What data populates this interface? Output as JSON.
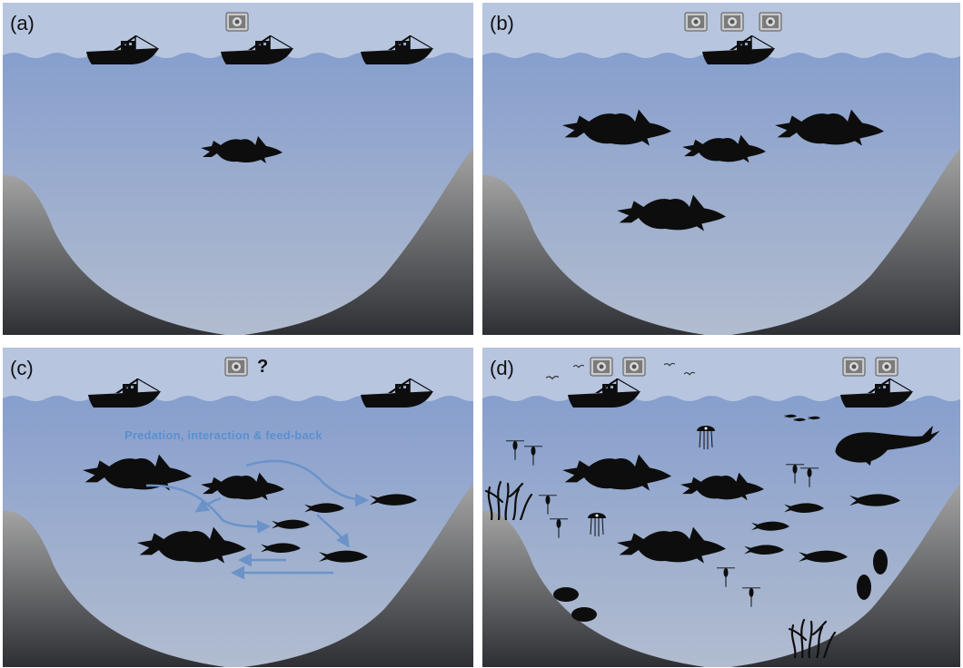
{
  "panels": [
    {
      "label": "(a)",
      "description_icons": {
        "boats": 3,
        "money_notes": 1,
        "fish": 1
      }
    },
    {
      "label": "(b)",
      "description_icons": {
        "boats": 1,
        "money_notes": 3,
        "fish": 4
      }
    },
    {
      "label": "(c)",
      "annotation": "Predation, interaction & feed-back",
      "question_mark": "?",
      "description_icons": {
        "boats": 2,
        "money_notes": 1
      }
    },
    {
      "label": "(d)",
      "description_icons": {
        "boats": 2,
        "money_notes": 4
      }
    }
  ],
  "colors": {
    "sky": "#b7c5df",
    "sea_top": "#8fa8d2",
    "sea_bottom": "#aab7cf",
    "seabed_top": "#9a9a9a",
    "seabed_bottom": "#2f3136",
    "arrow": "#6b93c9"
  },
  "icons": [
    "boat-icon",
    "money-icon",
    "cod-fish-icon",
    "herring-fish-icon",
    "whale-icon",
    "jellyfish-icon",
    "bird-icon",
    "seaweed-icon"
  ]
}
